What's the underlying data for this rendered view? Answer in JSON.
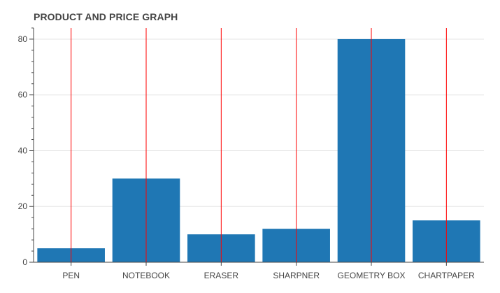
{
  "chart_data": {
    "type": "bar",
    "title": "PRODUCT AND PRICE GRAPH",
    "categories": [
      "PEN",
      "NOTEBOOK",
      "ERASER",
      "SHARPNER",
      "GEOMETRY BOX",
      "CHARTPAPER"
    ],
    "values": [
      5,
      30,
      10,
      12,
      80,
      15
    ],
    "y_ticks": [
      "0",
      "20",
      "40",
      "60",
      "80"
    ],
    "ylim": [
      0,
      84
    ],
    "grid": true,
    "colors": {
      "bar": "#1f77b4",
      "category_line": "#ff0000",
      "grid": "#e5e5e5",
      "axis": "#444444"
    }
  }
}
